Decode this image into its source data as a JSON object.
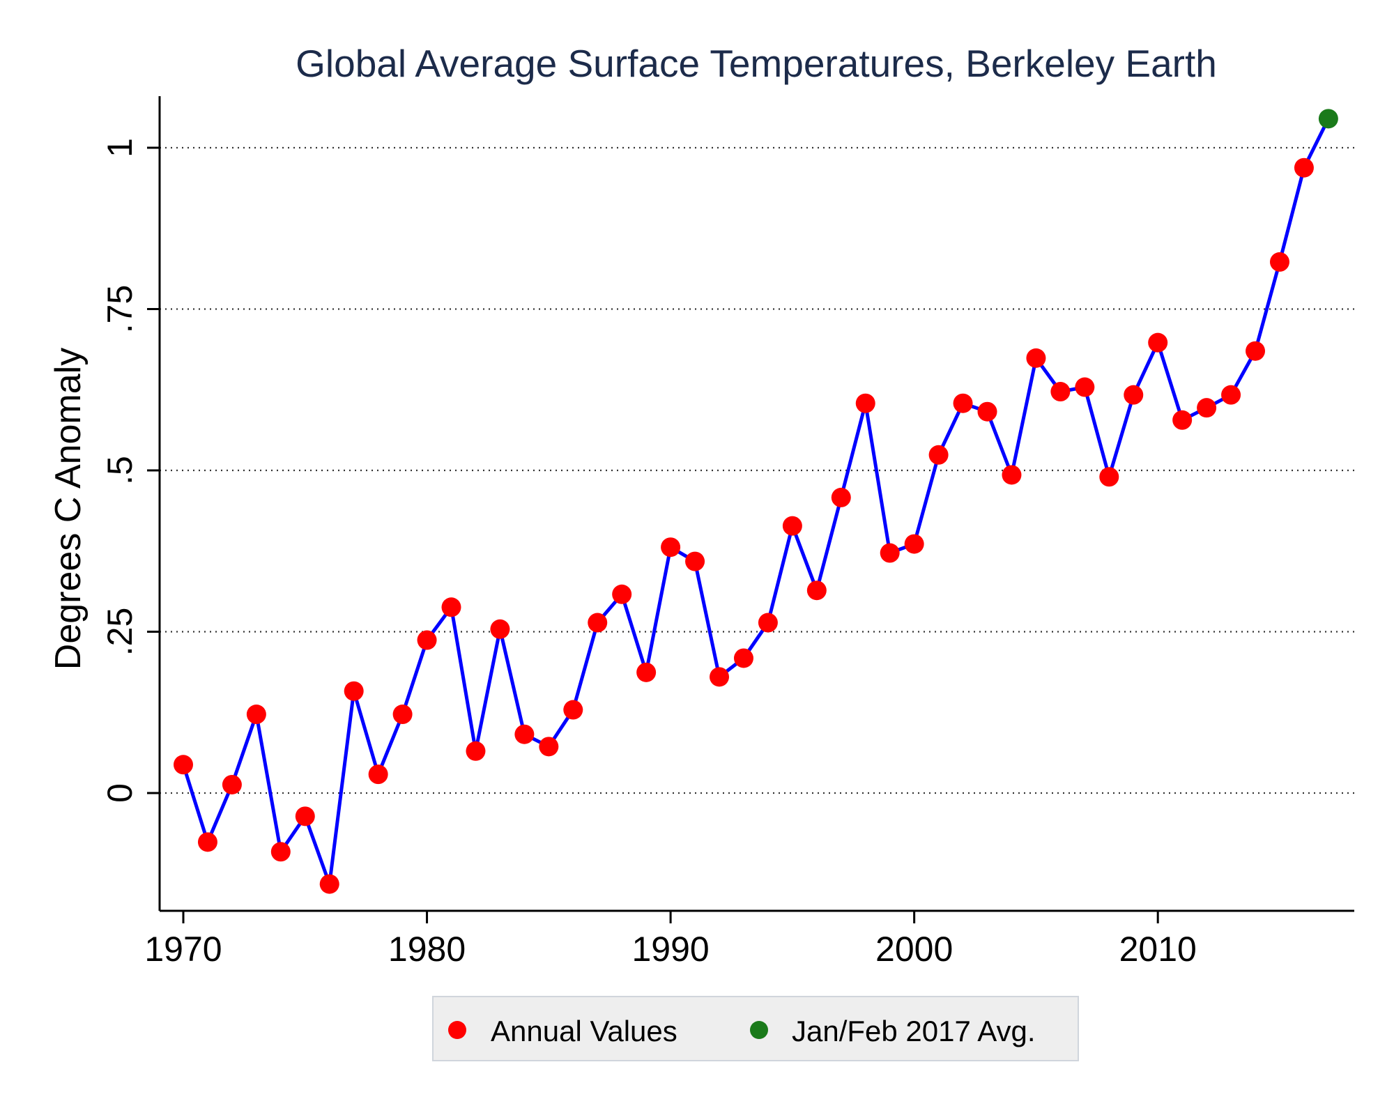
{
  "chart_data": {
    "type": "line",
    "title": "Global Average Surface Temperatures, Berkeley Earth",
    "ylabel": "Degrees C Anomaly",
    "xlabel": "",
    "xlim": [
      1969,
      2018
    ],
    "ylim": [
      -0.18,
      1.08
    ],
    "x_ticks": [
      1970,
      1980,
      1990,
      2000,
      2010
    ],
    "x_tick_labels": [
      "1970",
      "1980",
      "1990",
      "2000",
      "2010"
    ],
    "y_ticks": [
      0,
      0.25,
      0.5,
      0.75,
      1
    ],
    "y_tick_labels": [
      "0",
      ".25",
      ".5",
      ".75",
      "1"
    ],
    "grid": "horizontal dotted",
    "legend_position": "bottom",
    "colors": {
      "line": "#0000ff",
      "annual_marker": "#ff0000",
      "latest_marker": "#1a7a1a",
      "title": "#1c2b4a",
      "legend_bg": "#eeeeee"
    },
    "series": [
      {
        "name": "Annual Values",
        "x": [
          1970,
          1971,
          1972,
          1973,
          1974,
          1975,
          1976,
          1977,
          1978,
          1979,
          1980,
          1981,
          1982,
          1983,
          1984,
          1985,
          1986,
          1987,
          1988,
          1989,
          1990,
          1991,
          1992,
          1993,
          1994,
          1995,
          1996,
          1997,
          1998,
          1999,
          2000,
          2001,
          2002,
          2003,
          2004,
          2005,
          2006,
          2007,
          2008,
          2009,
          2010,
          2011,
          2012,
          2013,
          2014,
          2015,
          2016
        ],
        "values": [
          0.044,
          -0.076,
          0.013,
          0.122,
          -0.091,
          -0.036,
          -0.141,
          0.158,
          0.029,
          0.122,
          0.237,
          0.288,
          0.065,
          0.254,
          0.091,
          0.072,
          0.129,
          0.264,
          0.308,
          0.187,
          0.381,
          0.359,
          0.18,
          0.209,
          0.264,
          0.414,
          0.314,
          0.458,
          0.604,
          0.372,
          0.386,
          0.524,
          0.604,
          0.591,
          0.493,
          0.674,
          0.622,
          0.629,
          0.49,
          0.617,
          0.698,
          0.578,
          0.597,
          0.617,
          0.685,
          0.823,
          0.969
        ]
      },
      {
        "name": "Jan/Feb 2017 Avg.",
        "x": [
          2017
        ],
        "values": [
          1.045
        ]
      }
    ]
  }
}
